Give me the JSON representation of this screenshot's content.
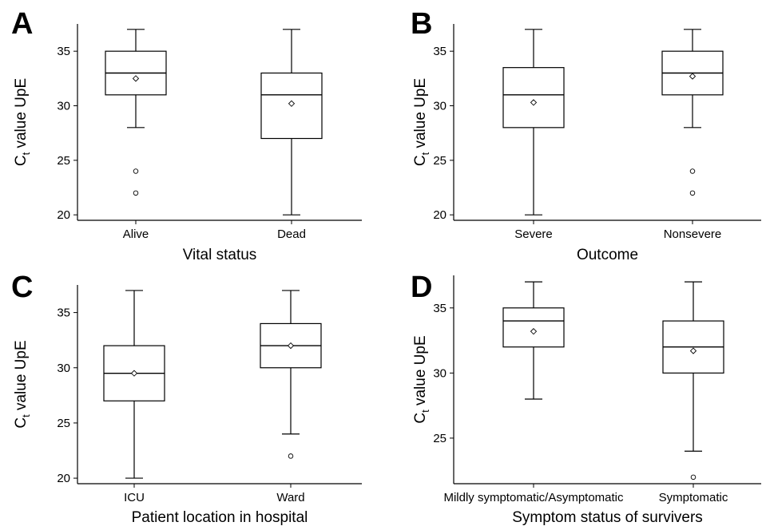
{
  "chart_data": [
    {
      "panel": "A",
      "type": "box",
      "xlabel": "Vital status",
      "ylabel_main": "C",
      "ylabel_sub": "t",
      "ylabel_rest": " value UpE",
      "ylim": [
        19.5,
        37.5
      ],
      "yticks": [
        20,
        25,
        30,
        35
      ],
      "grid": false,
      "categories": [
        "Alive",
        "Dead"
      ],
      "boxes": [
        {
          "category": "Alive",
          "min": 28,
          "q1": 31,
          "median": 33,
          "q3": 35,
          "max": 37,
          "mean": 32.5,
          "outliers": [
            24,
            22
          ]
        },
        {
          "category": "Dead",
          "min": 20,
          "q1": 27,
          "median": 31,
          "q3": 33,
          "max": 37,
          "mean": 30.2,
          "outliers": []
        }
      ]
    },
    {
      "panel": "B",
      "type": "box",
      "xlabel": "Outcome",
      "ylabel_main": "C",
      "ylabel_sub": "t",
      "ylabel_rest": " value UpE",
      "ylim": [
        19.5,
        37.5
      ],
      "yticks": [
        20,
        25,
        30,
        35
      ],
      "grid": false,
      "categories": [
        "Severe",
        "Nonsevere"
      ],
      "boxes": [
        {
          "category": "Severe",
          "min": 20,
          "q1": 28,
          "median": 31,
          "q3": 33.5,
          "max": 37,
          "mean": 30.3,
          "outliers": []
        },
        {
          "category": "Nonsevere",
          "min": 28,
          "q1": 31,
          "median": 33,
          "q3": 35,
          "max": 37,
          "mean": 32.7,
          "outliers": [
            24,
            22
          ]
        }
      ]
    },
    {
      "panel": "C",
      "type": "box",
      "xlabel": "Patient location in hospital",
      "ylabel_main": "C",
      "ylabel_sub": "t",
      "ylabel_rest": " value UpE",
      "ylim": [
        19.5,
        37.5
      ],
      "yticks": [
        20,
        25,
        30,
        35
      ],
      "grid": false,
      "categories": [
        "ICU",
        "Ward"
      ],
      "boxes": [
        {
          "category": "ICU",
          "min": 20,
          "q1": 27,
          "median": 29.5,
          "q3": 32,
          "max": 37,
          "mean": 29.5,
          "outliers": []
        },
        {
          "category": "Ward",
          "min": 24,
          "q1": 30,
          "median": 32,
          "q3": 34,
          "max": 37,
          "mean": 32,
          "outliers": [
            22
          ]
        }
      ]
    },
    {
      "panel": "D",
      "type": "box",
      "xlabel": "Symptom status of survivers",
      "ylabel_main": "C",
      "ylabel_sub": "t",
      "ylabel_rest": " value UpE",
      "ylim": [
        21.5,
        37.5
      ],
      "yticks": [
        25,
        30,
        35
      ],
      "grid": false,
      "categories": [
        "Mildly symptomatic/Asymptomatic",
        "Symptomatic"
      ],
      "boxes": [
        {
          "category": "Mildly symptomatic/Asymptomatic",
          "min": 28,
          "q1": 32,
          "median": 34,
          "q3": 35,
          "max": 37,
          "mean": 33.2,
          "outliers": []
        },
        {
          "category": "Symptomatic",
          "min": 24,
          "q1": 30,
          "median": 32,
          "q3": 34,
          "max": 37,
          "mean": 31.7,
          "outliers": [
            22
          ]
        }
      ]
    }
  ]
}
